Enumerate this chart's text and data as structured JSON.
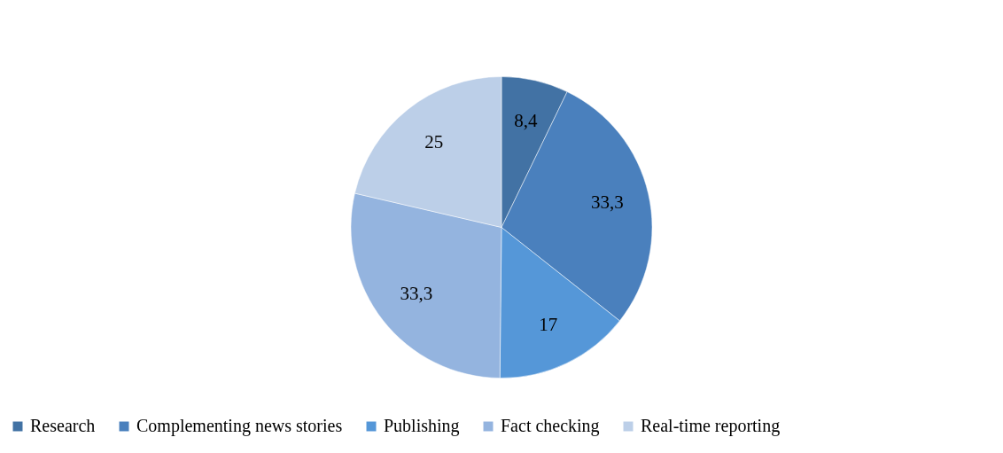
{
  "chart_data": {
    "type": "pie",
    "categories": [
      "Research",
      "Complementing news stories",
      "Publishing",
      "Fact checking",
      "Real-time reporting"
    ],
    "values": [
      8.4,
      33.3,
      17,
      33.3,
      25
    ],
    "value_labels": [
      "8,4",
      "33,3",
      "17",
      "33,3",
      "25"
    ],
    "colors": [
      "#4272a4",
      "#4a80bd",
      "#5597d8",
      "#94b4df",
      "#bccfe8"
    ],
    "legend": "bottom"
  }
}
